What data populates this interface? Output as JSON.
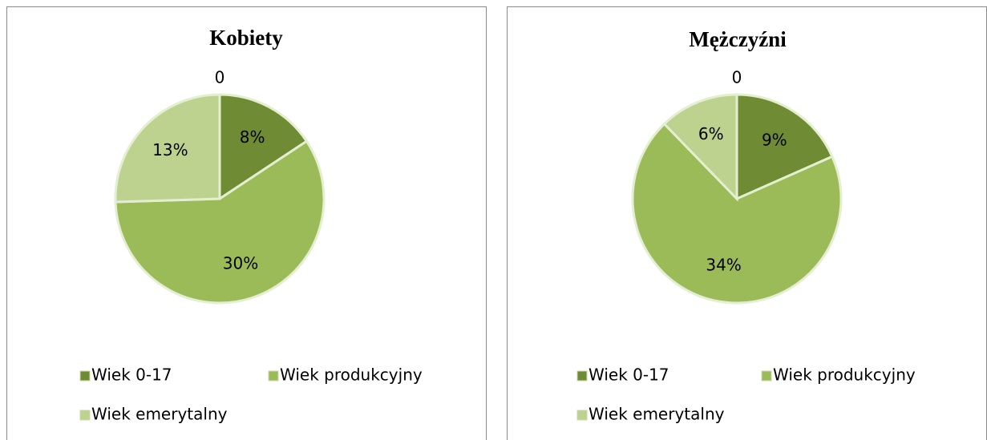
{
  "chart_data": [
    {
      "type": "pie",
      "title": "Kobiety",
      "categories": [
        "Wiek 0-17",
        "Wiek produkcyjny",
        "Wiek emerytalny",
        null
      ],
      "values": [
        8,
        30,
        13,
        0
      ],
      "value_labels": [
        "8%",
        "30%",
        "13%",
        "0"
      ],
      "colors": [
        "#6f8c34",
        "#9bbb59",
        "#bcd28e",
        "#9bbb59"
      ]
    },
    {
      "type": "pie",
      "title": "Mężczyźni",
      "categories": [
        "Wiek 0-17",
        "Wiek produkcyjny",
        "Wiek emerytalny",
        null
      ],
      "values": [
        9,
        34,
        6,
        0
      ],
      "value_labels": [
        "9%",
        "34%",
        "6%",
        "0"
      ],
      "colors": [
        "#6f8c34",
        "#9bbb59",
        "#bcd28e",
        "#9bbb59"
      ]
    }
  ]
}
